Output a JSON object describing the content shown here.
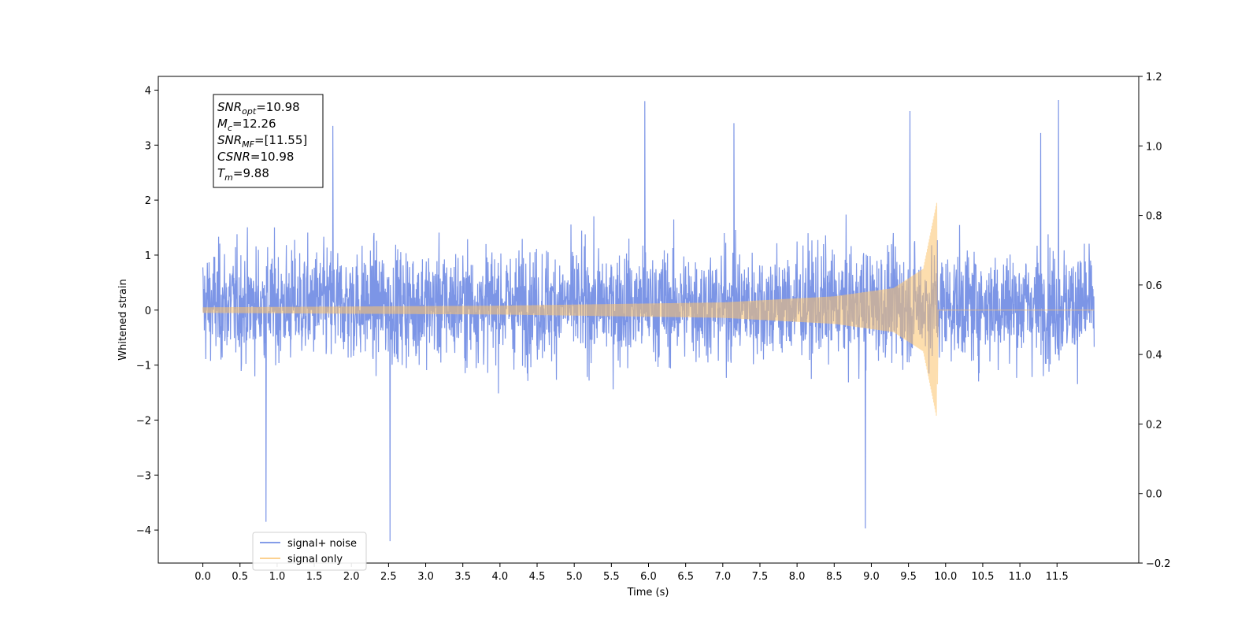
{
  "chart_data": {
    "type": "line",
    "title": "",
    "xlabel": "Time (s)",
    "ylabel": "Whitened strain",
    "y2label": "",
    "xlim": [
      -0.6,
      12.6
    ],
    "ylim": [
      -4.6,
      4.25
    ],
    "y2lim": [
      -0.2,
      1.2
    ],
    "xticks": [
      "0.0",
      "0.5",
      "1.0",
      "1.5",
      "2.0",
      "2.5",
      "3.0",
      "3.5",
      "4.0",
      "4.5",
      "5.0",
      "5.5",
      "6.0",
      "6.5",
      "7.0",
      "7.5",
      "8.0",
      "8.5",
      "9.0",
      "9.5",
      "10.0",
      "10.5",
      "11.0",
      "11.5"
    ],
    "yticks": [
      "−4",
      "−3",
      "−2",
      "−1",
      "0",
      "1",
      "2",
      "3",
      "4"
    ],
    "y2ticks": [
      "−0.2",
      "0.0",
      "0.2",
      "0.4",
      "0.6",
      "0.8",
      "1.0",
      "1.2"
    ],
    "grid": false,
    "legend_position": "lower-left",
    "series": [
      {
        "name": "signal+ noise",
        "color": "#5b7be0",
        "time_range": [
          0.0,
          12.0
        ],
        "typical_range": [
          -1.9,
          2.3
        ],
        "peaks": [
          {
            "x": 0.85,
            "y": -3.85
          },
          {
            "x": 1.75,
            "y": 3.35
          },
          {
            "x": 2.52,
            "y": -4.2
          },
          {
            "x": 5.95,
            "y": 3.8
          },
          {
            "x": 7.15,
            "y": 3.4
          },
          {
            "x": 8.92,
            "y": -3.97
          },
          {
            "x": 9.52,
            "y": 3.62
          },
          {
            "x": 11.28,
            "y": 3.22
          },
          {
            "x": 11.52,
            "y": 3.82
          }
        ]
      },
      {
        "name": "signal only",
        "color": "#fbc26b",
        "time_range": [
          0.0,
          12.0
        ],
        "merger_time": 9.88,
        "envelope": [
          {
            "x": 0.0,
            "y": 0.05
          },
          {
            "x": 4.0,
            "y": 0.08
          },
          {
            "x": 7.0,
            "y": 0.14
          },
          {
            "x": 8.5,
            "y": 0.25
          },
          {
            "x": 9.3,
            "y": 0.4
          },
          {
            "x": 9.7,
            "y": 0.75
          },
          {
            "x": 9.88,
            "y": 1.95
          }
        ]
      }
    ],
    "annotation": {
      "lines": [
        {
          "base": "SNR",
          "sub": "opt",
          "rest": "=10.98"
        },
        {
          "base": "M",
          "sub": "c",
          "rest": "=12.26"
        },
        {
          "base": "SNR",
          "sub": "MF",
          "rest": "=[11.55]"
        },
        {
          "base": "CSNR",
          "sub": "",
          "rest": "=10.98"
        },
        {
          "base": "T",
          "sub": "m",
          "rest": "=9.88"
        }
      ]
    }
  }
}
